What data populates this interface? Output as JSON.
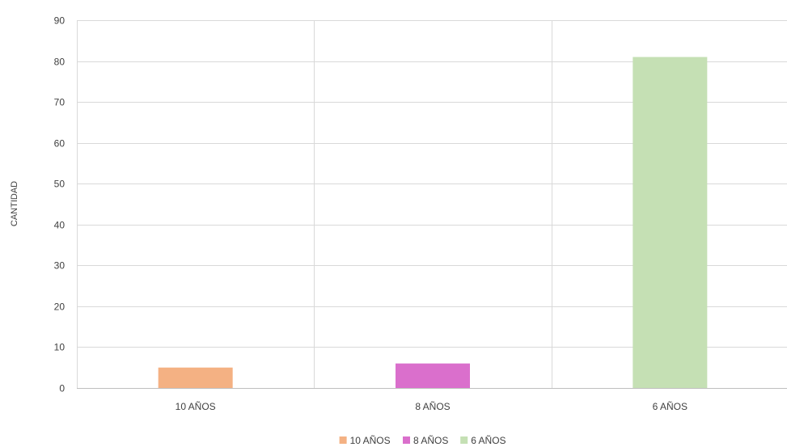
{
  "chart_data": {
    "type": "bar",
    "title": "",
    "xlabel": "",
    "ylabel": "CANTIDAD",
    "categories": [
      "10 AÑOS",
      "8 AÑOS",
      "6 AÑOS"
    ],
    "values": [
      5,
      6,
      81
    ],
    "colors": [
      "#F4B183",
      "#DA6FCC",
      "#C5E0B4"
    ],
    "ylim": [
      0,
      90
    ],
    "yticks": [
      0,
      10,
      20,
      30,
      40,
      50,
      60,
      70,
      80,
      90
    ],
    "grid": true,
    "legend": {
      "placement": "bottom",
      "entries": [
        "10 AÑOS",
        "8 AÑOS",
        "6 AÑOS"
      ]
    }
  }
}
